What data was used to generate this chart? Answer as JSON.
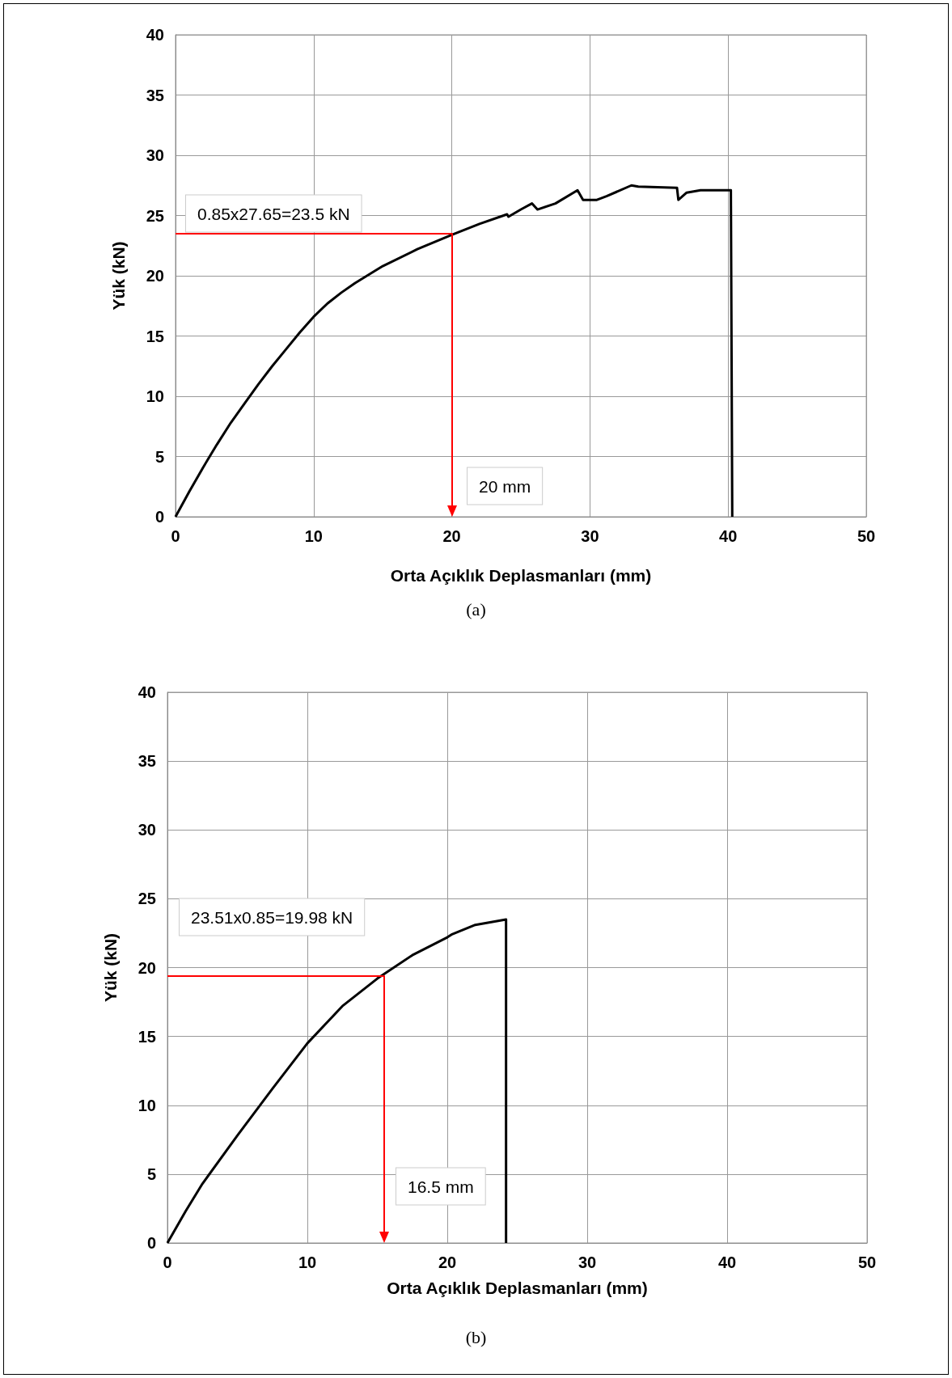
{
  "chart_data": [
    {
      "type": "line",
      "xlabel": "Orta Açıklık Deplasmanları (mm)",
      "ylabel": "Yük (kN)",
      "xlim": [
        0,
        50
      ],
      "ylim": [
        0,
        40
      ],
      "xticks": [
        0,
        10,
        20,
        30,
        40,
        50
      ],
      "yticks": [
        0,
        5,
        10,
        15,
        20,
        25,
        30,
        35,
        40
      ],
      "grid": true,
      "marker": "none",
      "series": [
        {
          "color": "#000000",
          "x": [
            0,
            1,
            2,
            3,
            4,
            5,
            6,
            7,
            8,
            9,
            10,
            11,
            12,
            13,
            14,
            15,
            17.5,
            20,
            22,
            24,
            24.1,
            25,
            25.8,
            26.2,
            27.5,
            29.1,
            29.5,
            30.5,
            31.2,
            33,
            33.5,
            36.3,
            36.4,
            37,
            38,
            40.2,
            40.3
          ],
          "values": [
            0,
            2.1,
            4.1,
            6.0,
            7.8,
            9.4,
            11.0,
            12.5,
            13.9,
            15.3,
            16.6,
            17.7,
            18.6,
            19.4,
            20.1,
            20.8,
            22.2,
            23.4,
            24.3,
            25.1,
            24.9,
            25.5,
            26.0,
            25.5,
            26.0,
            27.1,
            26.3,
            26.3,
            26.6,
            27.5,
            27.4,
            27.3,
            26.3,
            26.9,
            27.1,
            27.1,
            0
          ]
        }
      ],
      "annotations": [
        "0.85x27.65=23.5 kN",
        "20 mm",
        "(a)"
      ]
    },
    {
      "type": "line",
      "xlabel": "Orta Açıklık Deplasmanları (mm)",
      "ylabel": "Yük (kN)",
      "xlim": [
        0,
        50
      ],
      "ylim": [
        0,
        40
      ],
      "xticks": [
        0,
        10,
        20,
        30,
        40,
        50
      ],
      "yticks": [
        0,
        5,
        10,
        15,
        20,
        25,
        30,
        35,
        40
      ],
      "grid": true,
      "marker": "none",
      "series": [
        {
          "color": "#000000",
          "x": [
            0,
            1.3,
            2.5,
            5,
            7.5,
            10,
            12.5,
            15,
            17.5,
            20,
            20.3,
            22,
            24.2,
            24.2
          ],
          "values": [
            0,
            2.3,
            4.3,
            7.8,
            11.2,
            14.5,
            17.2,
            19.2,
            20.9,
            22.2,
            22.4,
            23.1,
            23.5,
            0
          ]
        }
      ],
      "annotations": [
        "23.51x0.85=19.98 kN",
        "16.5 mm",
        "(b)"
      ]
    }
  ]
}
